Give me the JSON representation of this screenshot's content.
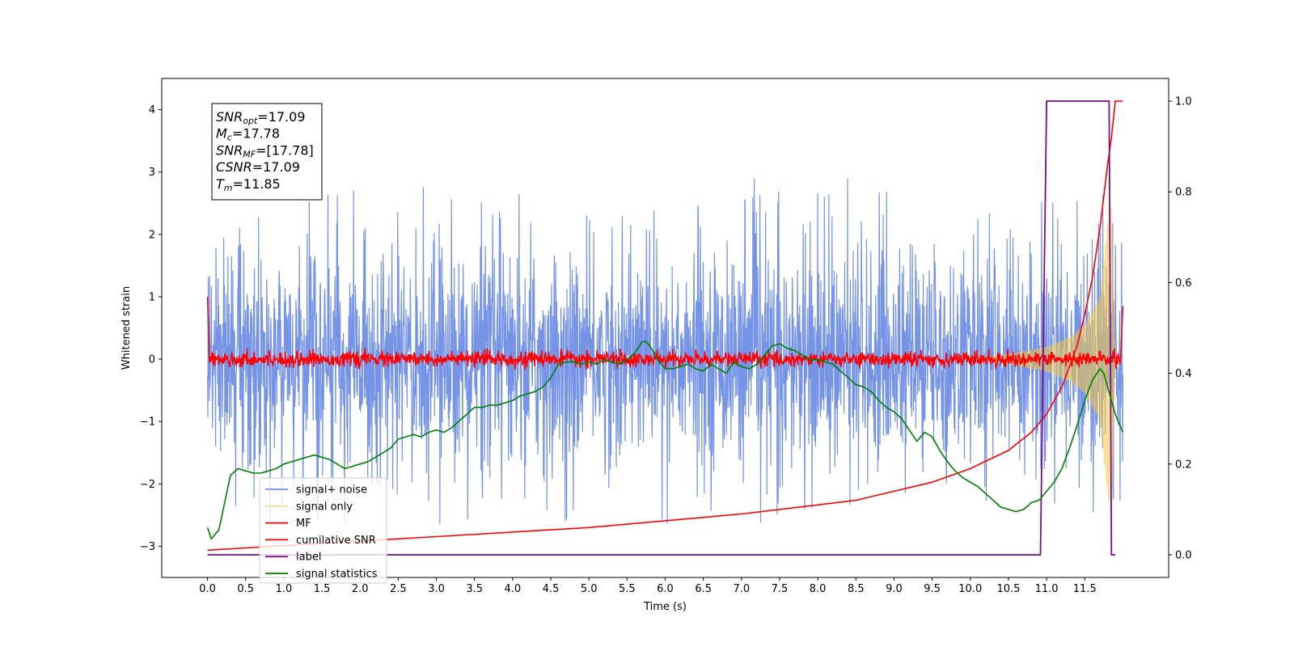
{
  "chart_data": {
    "type": "line",
    "xlabel": "Time (s)",
    "ylabel": "Whitened strain",
    "xlim": [
      -0.6,
      12.6
    ],
    "ylim": [
      -3.5,
      4.5
    ],
    "y2lim": [
      -0.05,
      1.05
    ],
    "x_ticks": [
      0.0,
      0.5,
      1.0,
      1.5,
      2.0,
      2.5,
      3.0,
      3.5,
      4.0,
      4.5,
      5.0,
      5.5,
      6.0,
      6.5,
      7.0,
      7.5,
      8.0,
      8.5,
      9.0,
      9.5,
      10.0,
      10.5,
      11.0,
      11.5
    ],
    "x_tick_labels": [
      "0.0",
      "0.5",
      "1.0",
      "1.5",
      "2.0",
      "2.5",
      "3.0",
      "3.5",
      "4.0",
      "4.5",
      "5.0",
      "5.5",
      "6.0",
      "6.5",
      "7.0",
      "7.5",
      "8.0",
      "8.5",
      "9.0",
      "9.5",
      "10.0",
      "10.5",
      "11.0",
      "11.5"
    ],
    "y_ticks": [
      -3,
      -2,
      -1,
      0,
      1,
      2,
      3,
      4
    ],
    "y_tick_labels": [
      "−3",
      "−2",
      "−1",
      "0",
      "1",
      "2",
      "3",
      "4"
    ],
    "y2_ticks": [
      0.0,
      0.2,
      0.4,
      0.6,
      0.8,
      1.0
    ],
    "y2_tick_labels": [
      "0.0",
      "0.2",
      "0.4",
      "0.6",
      "0.8",
      "1.0"
    ],
    "grid": false,
    "legend_position": "lower-left",
    "annotation": {
      "lines": [
        {
          "base": "SNR",
          "sub": "opt",
          "value": "=17.09"
        },
        {
          "base": "M",
          "sub": "c",
          "value": "=17.78"
        },
        {
          "base": "SNR",
          "sub": "MF",
          "value": "=[17.78]"
        },
        {
          "base": "CSNR",
          "sub": "",
          "value": "=17.09"
        },
        {
          "base": "T",
          "sub": "m",
          "value": "=11.85"
        }
      ]
    },
    "series": [
      {
        "name": "signal+ noise",
        "color": "#6f8ee6",
        "axis": "left",
        "kind": "noise",
        "x_range": [
          0.0,
          12.0
        ],
        "spread_sigma": 0.6,
        "peak_max": 2.9,
        "peak_min": -2.65
      },
      {
        "name": "signal only",
        "color": "#f5c842",
        "axis": "left",
        "kind": "chirp",
        "x_range": [
          0.0,
          12.0
        ],
        "amplitude_envelope": {
          "x": [
            10.0,
            10.5,
            11.0,
            11.3,
            11.5,
            11.7,
            11.8,
            11.85,
            11.9
          ],
          "y": [
            0.0,
            0.08,
            0.2,
            0.35,
            0.55,
            1.0,
            2.2,
            2.5,
            0.0
          ]
        }
      },
      {
        "name": "MF",
        "color": "#ff0000",
        "axis": "left",
        "kind": "mf",
        "x_range": [
          0.0,
          12.0
        ],
        "noise_amplitude": 0.06,
        "start": [
          0.0,
          1.0
        ],
        "end": [
          12.0,
          0.85
        ]
      },
      {
        "name": "cumilative SNR",
        "color": "#ff0000",
        "axis": "right",
        "x": [
          0.0,
          0.5,
          1.0,
          2.0,
          3.0,
          4.0,
          5.0,
          6.0,
          7.0,
          8.0,
          8.5,
          9.0,
          9.5,
          10.0,
          10.5,
          10.8,
          11.0,
          11.2,
          11.4,
          11.5,
          11.6,
          11.7,
          11.75,
          11.8,
          11.85,
          11.9,
          12.0
        ],
        "y": [
          0.01,
          0.015,
          0.02,
          0.03,
          0.04,
          0.05,
          0.06,
          0.075,
          0.09,
          0.11,
          0.12,
          0.14,
          0.16,
          0.19,
          0.23,
          0.27,
          0.31,
          0.37,
          0.46,
          0.53,
          0.61,
          0.72,
          0.79,
          0.86,
          0.92,
          1.0,
          1.0
        ]
      },
      {
        "name": "label",
        "color": "#7b0d8e",
        "axis": "right",
        "x": [
          0.0,
          10.92,
          11.0,
          11.82,
          11.85,
          11.9
        ],
        "y": [
          0.0,
          0.0,
          1.0,
          1.0,
          0.0,
          0.0
        ]
      },
      {
        "name": "signal statistics",
        "color": "#008000",
        "axis": "right",
        "x": [
          0.0,
          0.05,
          0.15,
          0.3,
          0.4,
          0.5,
          0.6,
          0.7,
          0.8,
          0.9,
          1.0,
          1.1,
          1.2,
          1.3,
          1.4,
          1.5,
          1.6,
          1.7,
          1.8,
          1.9,
          2.0,
          2.1,
          2.2,
          2.3,
          2.4,
          2.5,
          2.6,
          2.7,
          2.8,
          2.9,
          3.0,
          3.1,
          3.2,
          3.3,
          3.4,
          3.5,
          3.6,
          3.7,
          3.8,
          3.9,
          4.0,
          4.1,
          4.2,
          4.3,
          4.4,
          4.5,
          4.6,
          4.7,
          4.8,
          4.9,
          5.0,
          5.1,
          5.2,
          5.3,
          5.4,
          5.5,
          5.6,
          5.7,
          5.75,
          5.8,
          5.9,
          6.0,
          6.1,
          6.2,
          6.3,
          6.4,
          6.5,
          6.6,
          6.7,
          6.8,
          6.9,
          7.0,
          7.1,
          7.2,
          7.3,
          7.4,
          7.5,
          7.6,
          7.7,
          7.8,
          7.9,
          8.0,
          8.1,
          8.2,
          8.3,
          8.4,
          8.5,
          8.6,
          8.7,
          8.8,
          8.9,
          9.0,
          9.1,
          9.2,
          9.3,
          9.4,
          9.5,
          9.6,
          9.7,
          9.8,
          9.9,
          10.0,
          10.1,
          10.2,
          10.3,
          10.4,
          10.5,
          10.6,
          10.7,
          10.8,
          10.9,
          11.0,
          11.1,
          11.2,
          11.3,
          11.4,
          11.5,
          11.6,
          11.7,
          11.75,
          11.8,
          11.9,
          12.0
        ],
        "y": [
          0.06,
          0.035,
          0.055,
          0.175,
          0.19,
          0.185,
          0.18,
          0.18,
          0.185,
          0.19,
          0.2,
          0.205,
          0.21,
          0.215,
          0.22,
          0.215,
          0.21,
          0.2,
          0.19,
          0.195,
          0.2,
          0.205,
          0.215,
          0.225,
          0.235,
          0.255,
          0.26,
          0.265,
          0.26,
          0.27,
          0.275,
          0.27,
          0.28,
          0.295,
          0.31,
          0.325,
          0.325,
          0.33,
          0.33,
          0.335,
          0.34,
          0.35,
          0.355,
          0.36,
          0.37,
          0.39,
          0.42,
          0.425,
          0.425,
          0.42,
          0.425,
          0.42,
          0.43,
          0.425,
          0.42,
          0.43,
          0.445,
          0.47,
          0.47,
          0.46,
          0.43,
          0.41,
          0.41,
          0.415,
          0.42,
          0.41,
          0.405,
          0.42,
          0.41,
          0.4,
          0.425,
          0.415,
          0.41,
          0.42,
          0.44,
          0.46,
          0.465,
          0.455,
          0.45,
          0.44,
          0.43,
          0.43,
          0.425,
          0.42,
          0.405,
          0.39,
          0.375,
          0.37,
          0.36,
          0.34,
          0.325,
          0.315,
          0.3,
          0.275,
          0.25,
          0.27,
          0.26,
          0.23,
          0.205,
          0.185,
          0.17,
          0.16,
          0.15,
          0.135,
          0.12,
          0.105,
          0.1,
          0.095,
          0.1,
          0.115,
          0.12,
          0.14,
          0.16,
          0.19,
          0.235,
          0.285,
          0.34,
          0.385,
          0.41,
          0.4,
          0.37,
          0.31,
          0.27
        ]
      }
    ]
  }
}
